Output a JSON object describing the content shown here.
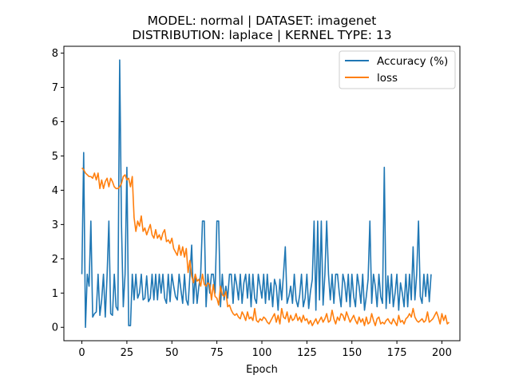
{
  "chart_data": {
    "type": "line",
    "title": "MODEL: normal | DATASET: imagenet",
    "subtitle": "DISTRIBUTION: laplace | KERNEL TYPE: 13",
    "xlabel": "Epoch",
    "ylabel": "",
    "xlim": [
      -10,
      210
    ],
    "ylim": [
      -0.39,
      8.2
    ],
    "xticks": [
      0,
      25,
      50,
      75,
      100,
      125,
      150,
      175,
      200
    ],
    "yticks": [
      0,
      1,
      2,
      3,
      4,
      5,
      6,
      7,
      8
    ],
    "grid": false,
    "legend_position": "upper-right",
    "series": [
      {
        "name": "Accuracy (%)",
        "color": "#1f77b4",
        "values": [
          1.55,
          5.1,
          0.0,
          1.55,
          1.2,
          3.1,
          0.3,
          0.4,
          0.45,
          1.55,
          0.35,
          0.8,
          1.55,
          0.3,
          1.5,
          3.1,
          0.4,
          0.35,
          1.55,
          0.6,
          0.5,
          7.8,
          3.0,
          0.6,
          1.55,
          4.67,
          0.05,
          0.05,
          1.55,
          0.8,
          1.55,
          0.85,
          1.0,
          1.55,
          0.8,
          0.85,
          1.5,
          0.75,
          0.85,
          1.55,
          0.8,
          1.55,
          0.8,
          1.55,
          1.0,
          1.55,
          0.85,
          0.7,
          1.55,
          0.75,
          1.55,
          1.2,
          0.9,
          0.8,
          1.55,
          1.1,
          0.7,
          1.55,
          0.8,
          0.65,
          1.5,
          2.4,
          0.7,
          1.55,
          0.7,
          1.2,
          1.55,
          3.1,
          3.1,
          0.6,
          1.55,
          1.0,
          1.55,
          1.55,
          1.0,
          3.1,
          3.1,
          0.6,
          1.55,
          0.8,
          1.2,
          0.85,
          1.55,
          1.55,
          0.7,
          1.55,
          1.25,
          0.8,
          1.55,
          0.7,
          1.3,
          1.55,
          0.85,
          1.55,
          0.6,
          1.55,
          0.85,
          0.7,
          1.55,
          1.2,
          0.85,
          1.55,
          0.7,
          1.55,
          0.8,
          1.3,
          0.6,
          1.4,
          1.2,
          0.5,
          1.4,
          0.8,
          1.55,
          2.35,
          0.7,
          0.9,
          1.2,
          0.7,
          1.55,
          0.8,
          0.6,
          0.95,
          1.55,
          0.6,
          0.85,
          1.55,
          0.55,
          1.05,
          1.4,
          3.1,
          0.5,
          3.1,
          0.8,
          3.1,
          0.65,
          1.55,
          3.1,
          1.55,
          0.8,
          1.55,
          0.7,
          1.55,
          1.55,
          1.0,
          0.6,
          1.55,
          1.3,
          0.75,
          1.55,
          0.6,
          1.55,
          0.9,
          0.6,
          1.55,
          1.2,
          0.7,
          1.55,
          0.5,
          0.9,
          1.4,
          3.1,
          0.7,
          1.55,
          1.2,
          0.6,
          1.55,
          0.9,
          0.7,
          4.67,
          0.55,
          1.5,
          0.7,
          1.55,
          0.6,
          1.0,
          1.55,
          0.5,
          1.3,
          1.0,
          0.6,
          1.55,
          0.6,
          1.55,
          0.8,
          2.35,
          0.8,
          1.55,
          3.1,
          0.9,
          0.7,
          1.55,
          0.9,
          1.55,
          0.75,
          1.55
        ]
      },
      {
        "name": "loss",
        "color": "#ff7f0e",
        "values": [
          4.65,
          4.6,
          4.5,
          4.45,
          4.4,
          4.4,
          4.35,
          4.5,
          4.3,
          4.5,
          4.05,
          4.3,
          4.05,
          4.25,
          4.35,
          4.1,
          4.35,
          4.25,
          4.1,
          4.05,
          4.05,
          4.1,
          4.2,
          4.4,
          4.45,
          4.3,
          4.35,
          4.1,
          4.4,
          3.2,
          2.8,
          3.1,
          2.95,
          3.25,
          2.8,
          2.9,
          2.7,
          2.85,
          3.0,
          2.7,
          2.6,
          2.85,
          2.6,
          2.7,
          2.55,
          2.75,
          2.85,
          2.5,
          2.55,
          2.45,
          2.6,
          2.3,
          2.2,
          2.1,
          2.4,
          2.1,
          2.35,
          2.05,
          2.3,
          1.6,
          1.95,
          1.5,
          1.3,
          1.55,
          1.35,
          1.4,
          1.2,
          1.55,
          1.25,
          1.2,
          1.3,
          1.25,
          0.8,
          1.25,
          0.9,
          0.85,
          0.65,
          1.2,
          0.95,
          0.9,
          1.05,
          0.6,
          0.65,
          0.5,
          0.4,
          0.35,
          0.4,
          0.3,
          0.25,
          0.45,
          0.35,
          0.2,
          0.45,
          0.25,
          0.3,
          0.2,
          0.55,
          0.2,
          0.15,
          0.25,
          0.2,
          0.3,
          0.25,
          0.15,
          0.1,
          0.2,
          0.3,
          0.4,
          0.15,
          0.35,
          0.1,
          0.55,
          0.3,
          0.25,
          0.45,
          0.15,
          0.35,
          0.2,
          0.25,
          0.4,
          0.2,
          0.3,
          0.15,
          0.35,
          0.2,
          0.25,
          0.1,
          0.2,
          0.05,
          0.15,
          0.25,
          0.1,
          0.2,
          0.3,
          0.15,
          0.25,
          0.4,
          0.15,
          0.2,
          0.5,
          0.25,
          0.1,
          0.3,
          0.2,
          0.4,
          0.35,
          0.2,
          0.45,
          0.3,
          0.15,
          0.25,
          0.35,
          0.2,
          0.1,
          0.3,
          0.15,
          0.25,
          0.05,
          0.3,
          0.1,
          0.15,
          0.4,
          0.2,
          0.05,
          0.25,
          0.3,
          0.1,
          0.15,
          0.1,
          0.2,
          0.25,
          0.15,
          0.1,
          0.25,
          0.15,
          0.05,
          0.35,
          0.15,
          0.2,
          0.1,
          0.25,
          0.3,
          0.4,
          0.3,
          0.55,
          0.3,
          0.2,
          0.15,
          0.2,
          0.25,
          0.15,
          0.2,
          0.45,
          0.15,
          0.2,
          0.25,
          0.35,
          0.45,
          0.3,
          0.1,
          0.4,
          0.2,
          0.35,
          0.1,
          0.15
        ]
      }
    ]
  }
}
